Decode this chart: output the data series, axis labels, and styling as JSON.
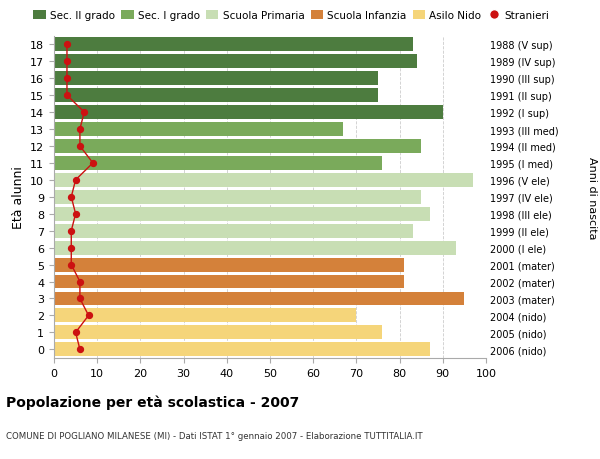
{
  "ages": [
    18,
    17,
    16,
    15,
    14,
    13,
    12,
    11,
    10,
    9,
    8,
    7,
    6,
    5,
    4,
    3,
    2,
    1,
    0
  ],
  "bar_values": [
    83,
    84,
    75,
    75,
    90,
    67,
    85,
    76,
    97,
    85,
    87,
    83,
    93,
    81,
    81,
    95,
    70,
    76,
    87
  ],
  "bar_colors": [
    "#4d7c3f",
    "#4d7c3f",
    "#4d7c3f",
    "#4d7c3f",
    "#4d7c3f",
    "#7aaa5b",
    "#7aaa5b",
    "#7aaa5b",
    "#c8deb4",
    "#c8deb4",
    "#c8deb4",
    "#c8deb4",
    "#c8deb4",
    "#d4813a",
    "#d4813a",
    "#d4813a",
    "#f5d57a",
    "#f5d57a",
    "#f5d57a"
  ],
  "right_labels": [
    "1988 (V sup)",
    "1989 (IV sup)",
    "1990 (III sup)",
    "1991 (II sup)",
    "1992 (I sup)",
    "1993 (III med)",
    "1994 (II med)",
    "1995 (I med)",
    "1996 (V ele)",
    "1997 (IV ele)",
    "1998 (III ele)",
    "1999 (II ele)",
    "2000 (I ele)",
    "2001 (mater)",
    "2002 (mater)",
    "2003 (mater)",
    "2004 (nido)",
    "2005 (nido)",
    "2006 (nido)"
  ],
  "stranieri_values": [
    3,
    3,
    3,
    3,
    7,
    6,
    6,
    9,
    5,
    4,
    5,
    4,
    4,
    4,
    6,
    6,
    8,
    5,
    6
  ],
  "legend_labels": [
    "Sec. II grado",
    "Sec. I grado",
    "Scuola Primaria",
    "Scuola Infanzia",
    "Asilo Nido",
    "Stranieri"
  ],
  "legend_colors": [
    "#4d7c3f",
    "#7aaa5b",
    "#c8deb4",
    "#d4813a",
    "#f5d57a",
    "#cc1111"
  ],
  "title": "Popolazione per età scolastica - 2007",
  "subtitle": "COMUNE DI POGLIANO MILANESE (MI) - Dati ISTAT 1° gennaio 2007 - Elaborazione TUTTITALIA.IT",
  "ylabel_left": "Età alunni",
  "ylabel_right": "Anni di nascita",
  "xlim": [
    0,
    100
  ],
  "xticks": [
    0,
    10,
    20,
    30,
    40,
    50,
    60,
    70,
    80,
    90,
    100
  ],
  "bg_color": "#ffffff",
  "grid_color": "#cccccc",
  "bar_height": 0.82
}
